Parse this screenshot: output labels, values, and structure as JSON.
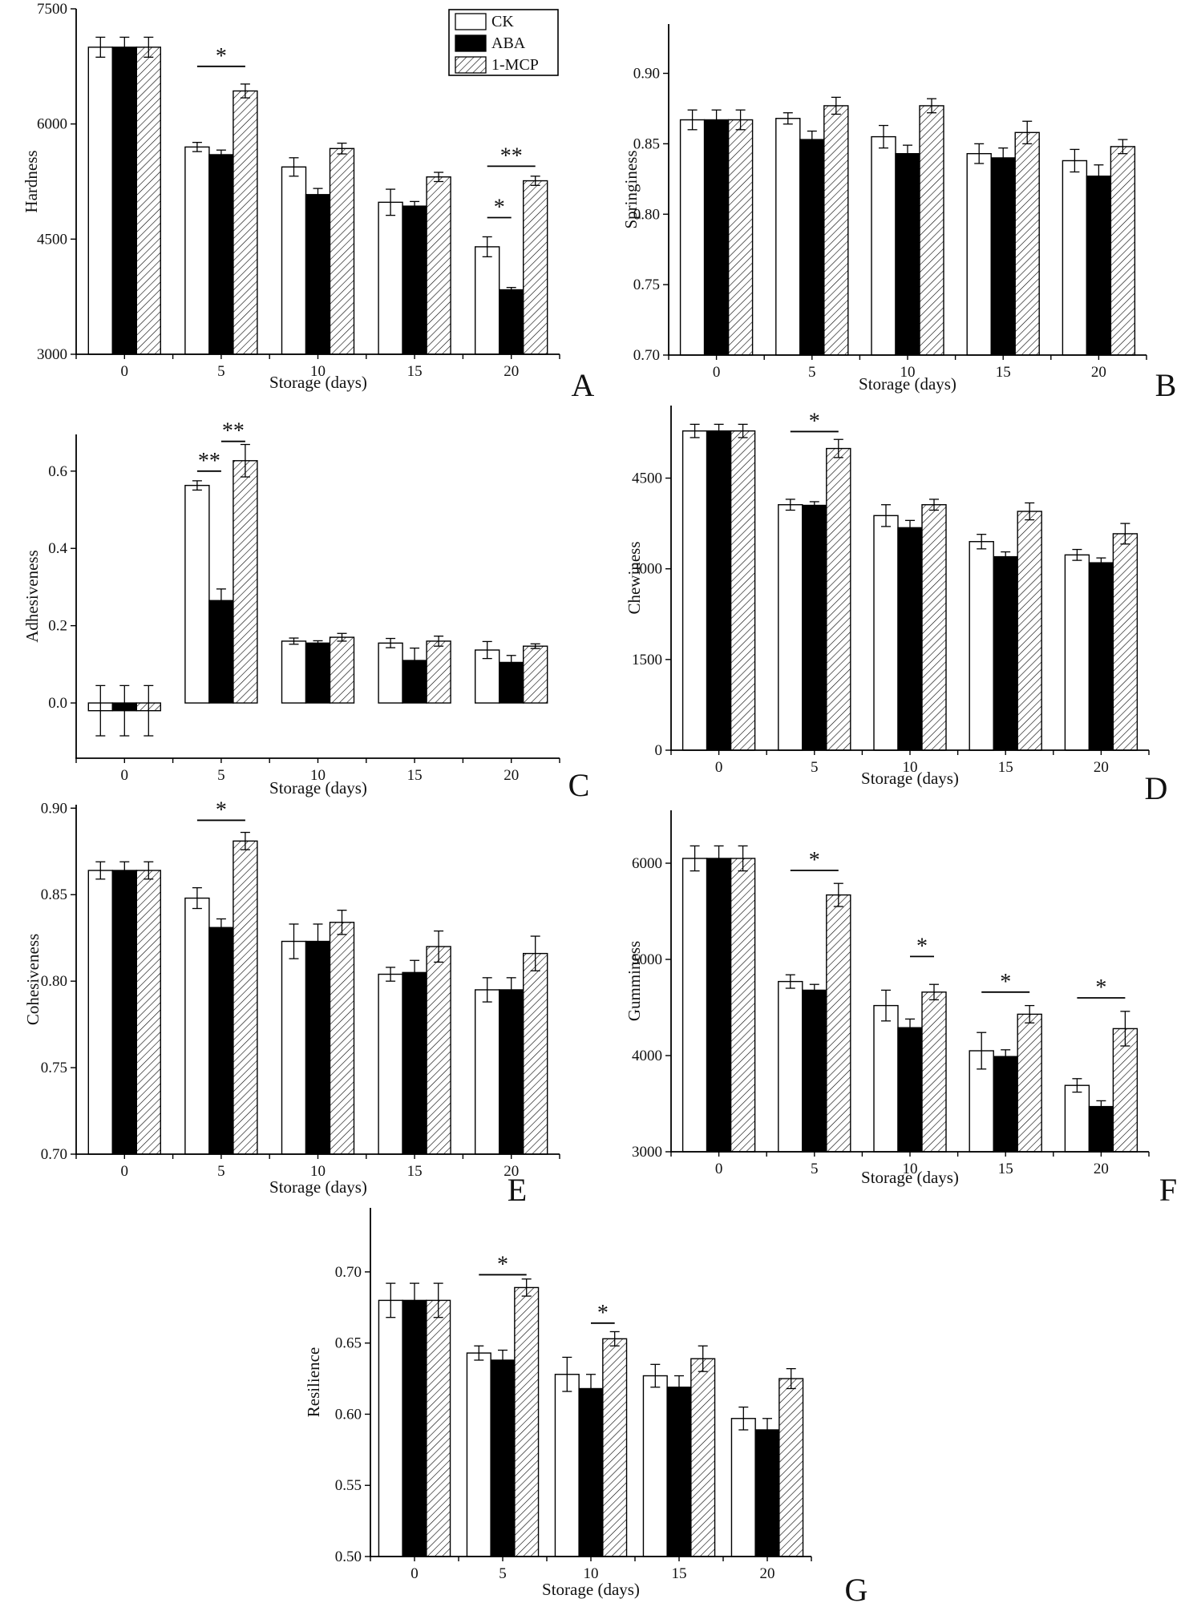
{
  "figure": {
    "xlabel": "Storage (days)",
    "categories": [
      "0",
      "5",
      "10",
      "15",
      "20"
    ],
    "legend": {
      "entries": [
        {
          "label": "CK",
          "swatch": "white"
        },
        {
          "label": "ABA",
          "swatch": "black"
        },
        {
          "label": "1-MCP",
          "swatch": "hatch"
        }
      ]
    },
    "colors": {
      "ink": "#000000",
      "paper": "#ffffff"
    }
  },
  "chart_data": [
    {
      "type": "bar",
      "panel": "A",
      "ylabel": "Hardness",
      "xlabel": "Storage (days)",
      "categories": [
        "0",
        "5",
        "10",
        "15",
        "20"
      ],
      "ylim": [
        3000,
        7500
      ],
      "yticks": [
        {
          "v": 3000,
          "label": "3000"
        },
        {
          "v": 4500,
          "label": "4500"
        },
        {
          "v": 6000,
          "label": "6000"
        },
        {
          "v": 7500,
          "label": "7500"
        }
      ],
      "series": [
        {
          "name": "CK",
          "values": [
            7000,
            5700,
            5440,
            4980,
            4400
          ],
          "errors": [
            130,
            60,
            120,
            170,
            130
          ]
        },
        {
          "name": "ABA",
          "values": [
            7000,
            5600,
            5080,
            4930,
            3840
          ],
          "errors": [
            130,
            60,
            80,
            60,
            30
          ]
        },
        {
          "name": "1-MCP",
          "values": [
            7000,
            6430,
            5680,
            5310,
            5260
          ],
          "errors": [
            130,
            90,
            70,
            60,
            60
          ]
        }
      ],
      "significance": [
        {
          "group": 1,
          "span": [
            0,
            2
          ],
          "label": "*",
          "y": 6750
        },
        {
          "group": 4,
          "span": [
            0,
            2
          ],
          "label": "**",
          "y": 5450
        },
        {
          "group": 4,
          "span": [
            0,
            1
          ],
          "label": "*",
          "y": 4780
        }
      ],
      "show_legend": true
    },
    {
      "type": "bar",
      "panel": "B",
      "ylabel": "Springiness",
      "xlabel": "Storage (days)",
      "categories": [
        "0",
        "5",
        "10",
        "15",
        "20"
      ],
      "ylim": [
        0.7,
        0.935
      ],
      "yticks": [
        {
          "v": 0.7,
          "label": "0.70"
        },
        {
          "v": 0.75,
          "label": "0.75"
        },
        {
          "v": 0.8,
          "label": "0.80"
        },
        {
          "v": 0.85,
          "label": "0.85"
        },
        {
          "v": 0.9,
          "label": "0.90"
        }
      ],
      "series": [
        {
          "name": "CK",
          "values": [
            0.867,
            0.868,
            0.855,
            0.843,
            0.838
          ],
          "errors": [
            0.007,
            0.004,
            0.008,
            0.007,
            0.008
          ]
        },
        {
          "name": "ABA",
          "values": [
            0.867,
            0.853,
            0.843,
            0.84,
            0.827
          ],
          "errors": [
            0.007,
            0.006,
            0.006,
            0.007,
            0.008
          ]
        },
        {
          "name": "1-MCP",
          "values": [
            0.867,
            0.877,
            0.877,
            0.858,
            0.848
          ],
          "errors": [
            0.007,
            0.006,
            0.005,
            0.008,
            0.005
          ]
        }
      ],
      "significance": [],
      "show_legend": false
    },
    {
      "type": "bar",
      "panel": "C",
      "ylabel": "Adhesiveness",
      "xlabel": "Storage (days)",
      "categories": [
        "0",
        "5",
        "10",
        "15",
        "20"
      ],
      "ylim": [
        -0.143,
        0.695
      ],
      "yticks": [
        {
          "v": 0.0,
          "label": "0.0"
        },
        {
          "v": 0.2,
          "label": "0.2"
        },
        {
          "v": 0.4,
          "label": "0.4"
        },
        {
          "v": 0.6,
          "label": "0.6"
        }
      ],
      "series": [
        {
          "name": "CK",
          "values": [
            -0.02,
            0.563,
            0.16,
            0.155,
            0.137
          ],
          "errors": [
            0.065,
            0.012,
            0.008,
            0.012,
            0.022
          ]
        },
        {
          "name": "ABA",
          "values": [
            -0.02,
            0.265,
            0.155,
            0.11,
            0.105
          ],
          "errors": [
            0.065,
            0.03,
            0.006,
            0.032,
            0.018
          ]
        },
        {
          "name": "1-MCP",
          "values": [
            -0.02,
            0.627,
            0.17,
            0.16,
            0.147
          ],
          "errors": [
            0.065,
            0.042,
            0.01,
            0.013,
            0.006
          ]
        }
      ],
      "significance": [
        {
          "group": 1,
          "span": [
            0,
            1
          ],
          "label": "**",
          "y": 0.6
        },
        {
          "group": 1,
          "span": [
            1,
            2
          ],
          "label": "**",
          "y": 0.677
        }
      ],
      "show_legend": false
    },
    {
      "type": "bar",
      "panel": "D",
      "ylabel": "Chewiness",
      "xlabel": "Storage (days)",
      "categories": [
        "0",
        "5",
        "10",
        "15",
        "20"
      ],
      "ylim": [
        0,
        5700
      ],
      "yticks": [
        {
          "v": 0,
          "label": "0"
        },
        {
          "v": 1500,
          "label": "1500"
        },
        {
          "v": 3000,
          "label": "3000"
        },
        {
          "v": 4500,
          "label": "4500"
        }
      ],
      "series": [
        {
          "name": "CK",
          "values": [
            5280,
            4060,
            3880,
            3450,
            3230
          ],
          "errors": [
            110,
            90,
            180,
            120,
            90
          ]
        },
        {
          "name": "ABA",
          "values": [
            5280,
            4050,
            3680,
            3200,
            3100
          ],
          "errors": [
            110,
            60,
            120,
            80,
            80
          ]
        },
        {
          "name": "1-MCP",
          "values": [
            5280,
            4990,
            4060,
            3950,
            3580
          ],
          "errors": [
            110,
            150,
            90,
            140,
            170
          ]
        }
      ],
      "significance": [
        {
          "group": 1,
          "span": [
            0,
            2
          ],
          "label": "*",
          "y": 5270
        }
      ],
      "show_legend": false
    },
    {
      "type": "bar",
      "panel": "E",
      "ylabel": "Cohesiveness",
      "xlabel": "Storage (days)",
      "categories": [
        "0",
        "5",
        "10",
        "15",
        "20"
      ],
      "ylim": [
        0.7,
        0.902
      ],
      "yticks": [
        {
          "v": 0.7,
          "label": "0.70"
        },
        {
          "v": 0.75,
          "label": "0.75"
        },
        {
          "v": 0.8,
          "label": "0.80"
        },
        {
          "v": 0.85,
          "label": "0.85"
        },
        {
          "v": 0.9,
          "label": "0.90"
        }
      ],
      "series": [
        {
          "name": "CK",
          "values": [
            0.864,
            0.848,
            0.823,
            0.804,
            0.795
          ],
          "errors": [
            0.005,
            0.006,
            0.01,
            0.004,
            0.007
          ]
        },
        {
          "name": "ABA",
          "values": [
            0.864,
            0.831,
            0.823,
            0.805,
            0.795
          ],
          "errors": [
            0.005,
            0.005,
            0.01,
            0.007,
            0.007
          ]
        },
        {
          "name": "1-MCP",
          "values": [
            0.864,
            0.881,
            0.834,
            0.82,
            0.816
          ],
          "errors": [
            0.005,
            0.005,
            0.007,
            0.009,
            0.01
          ]
        }
      ],
      "significance": [
        {
          "group": 1,
          "span": [
            0,
            2
          ],
          "label": "*",
          "y": 0.893
        }
      ],
      "show_legend": false
    },
    {
      "type": "bar",
      "panel": "F",
      "ylabel": "Gumminess",
      "xlabel": "Storage (days)",
      "categories": [
        "0",
        "5",
        "10",
        "15",
        "20"
      ],
      "ylim": [
        3000,
        6550
      ],
      "yticks": [
        {
          "v": 3000,
          "label": "3000"
        },
        {
          "v": 4000,
          "label": "4000"
        },
        {
          "v": 5000,
          "label": "5000"
        },
        {
          "v": 6000,
          "label": "6000"
        }
      ],
      "series": [
        {
          "name": "CK",
          "values": [
            6050,
            4770,
            4520,
            4050,
            3690
          ],
          "errors": [
            130,
            70,
            160,
            190,
            70
          ]
        },
        {
          "name": "ABA",
          "values": [
            6050,
            4680,
            4290,
            3990,
            3470
          ],
          "errors": [
            130,
            60,
            90,
            70,
            60
          ]
        },
        {
          "name": "1-MCP",
          "values": [
            6050,
            5670,
            4660,
            4430,
            4280
          ],
          "errors": [
            130,
            120,
            80,
            90,
            180
          ]
        }
      ],
      "significance": [
        {
          "group": 1,
          "span": [
            0,
            2
          ],
          "label": "*",
          "y": 5925
        },
        {
          "group": 2,
          "span": [
            1,
            2
          ],
          "label": "*",
          "y": 5030
        },
        {
          "group": 3,
          "span": [
            0,
            2
          ],
          "label": "*",
          "y": 4660
        },
        {
          "group": 4,
          "span": [
            0,
            2
          ],
          "label": "*",
          "y": 4600
        }
      ],
      "show_legend": false
    },
    {
      "type": "bar",
      "panel": "G",
      "ylabel": "Resilience",
      "xlabel": "Storage (days)",
      "categories": [
        "0",
        "5",
        "10",
        "15",
        "20"
      ],
      "ylim": [
        0.5,
        0.745
      ],
      "yticks": [
        {
          "v": 0.5,
          "label": "0.50"
        },
        {
          "v": 0.55,
          "label": "0.55"
        },
        {
          "v": 0.6,
          "label": "0.60"
        },
        {
          "v": 0.65,
          "label": "0.65"
        },
        {
          "v": 0.7,
          "label": "0.70"
        }
      ],
      "series": [
        {
          "name": "CK",
          "values": [
            0.68,
            0.643,
            0.628,
            0.627,
            0.597
          ],
          "errors": [
            0.012,
            0.005,
            0.012,
            0.008,
            0.008
          ]
        },
        {
          "name": "ABA",
          "values": [
            0.68,
            0.638,
            0.618,
            0.619,
            0.589
          ],
          "errors": [
            0.012,
            0.007,
            0.01,
            0.008,
            0.008
          ]
        },
        {
          "name": "1-MCP",
          "values": [
            0.68,
            0.689,
            0.653,
            0.639,
            0.625
          ],
          "errors": [
            0.012,
            0.006,
            0.005,
            0.009,
            0.007
          ]
        }
      ],
      "significance": [
        {
          "group": 1,
          "span": [
            0,
            2
          ],
          "label": "*",
          "y": 0.698
        },
        {
          "group": 2,
          "span": [
            1,
            2
          ],
          "label": "*",
          "y": 0.664
        }
      ],
      "show_legend": false
    }
  ]
}
